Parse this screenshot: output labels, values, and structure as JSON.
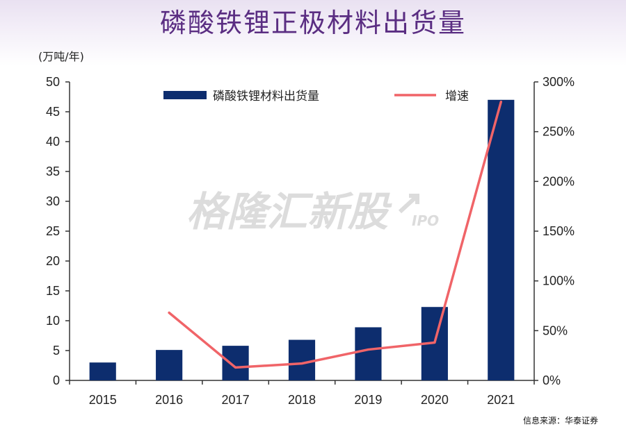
{
  "title": "磷酸铁锂正极材料出货量",
  "source": "信息来源：华泰证券",
  "watermark": {
    "main": "格隆汇新股",
    "sub": "IPO"
  },
  "colors": {
    "bar": "#0d2d6e",
    "line": "#f06468",
    "title": "#5a2d82",
    "axis": "#333333",
    "watermark": "#dcdcdc"
  },
  "chart_data": {
    "type": "bar",
    "categories": [
      "2015",
      "2016",
      "2017",
      "2018",
      "2019",
      "2020",
      "2021"
    ],
    "y_unit_label": "(万吨/年)",
    "ylim": [
      0,
      50
    ],
    "yticks": [
      0,
      5,
      10,
      15,
      20,
      25,
      30,
      35,
      40,
      45,
      50
    ],
    "y2lim": [
      0,
      300
    ],
    "y2ticks": [
      "0%",
      "50%",
      "100%",
      "150%",
      "200%",
      "250%",
      "300%"
    ],
    "grid": false,
    "legend_position": "top",
    "series": [
      {
        "name": "磷酸铁锂材料出货量",
        "type": "bar",
        "axis": "left",
        "values": [
          3.0,
          5.1,
          5.8,
          6.8,
          8.9,
          12.3,
          47.0
        ]
      },
      {
        "name": "增速",
        "type": "line",
        "axis": "right",
        "values": [
          null,
          68,
          13,
          17,
          31,
          38,
          280
        ]
      }
    ]
  }
}
